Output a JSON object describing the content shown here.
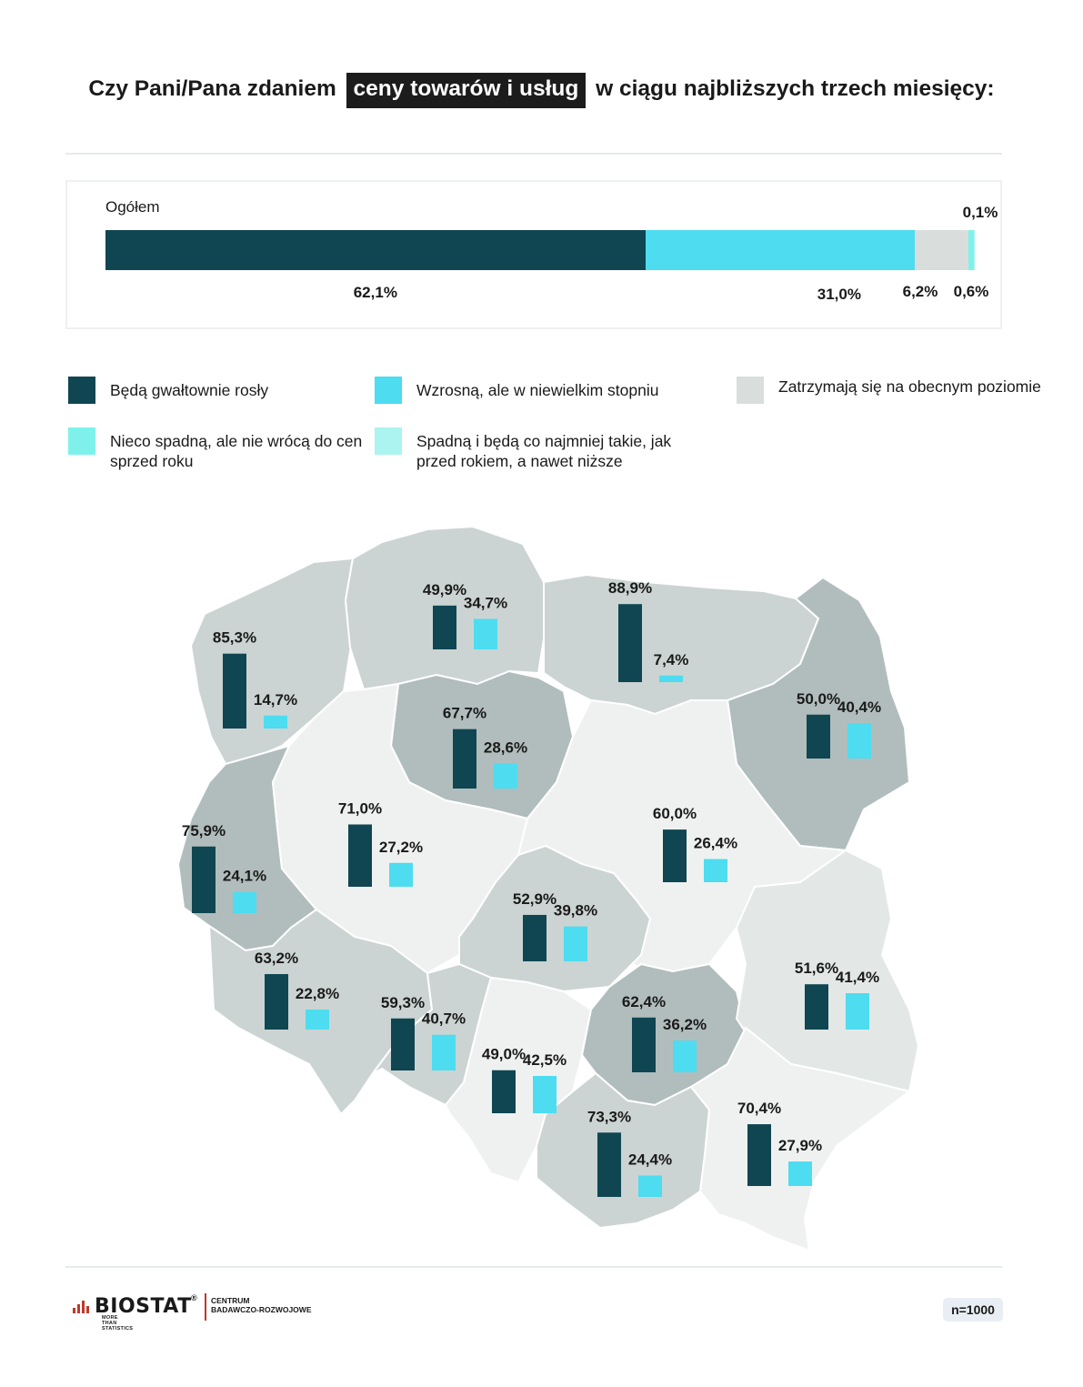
{
  "title": {
    "before": "Czy Pani/Pana zdaniem",
    "highlight": "ceny towarów i usług",
    "after": "w ciągu najbliższych trzech miesięcy:"
  },
  "colors": {
    "sharp_rise": "#0f4652",
    "slight_rise": "#4ddcf0",
    "stay": "#d9dedd",
    "slight_fall": "#7ef2ea",
    "fall": "#acf4ef",
    "region_dark": "#b1bdbc",
    "region_mid": "#cbd4d2",
    "region_light": "#e3e7e6",
    "region_lightest": "#eff1f0"
  },
  "chart_data": [
    {
      "type": "bar",
      "label": "Ogółem",
      "series": [
        {
          "name": "Będą gwałtownie rosły",
          "value": 62.1,
          "label": "62,1%"
        },
        {
          "name": "Wzrosną, ale w niewielkim stopniu",
          "value": 31.0,
          "label": "31,0%"
        },
        {
          "name": "Zatrzymają się na obecnym poziomie",
          "value": 6.2,
          "label": "6,2%"
        },
        {
          "name": "Nieco spadną, ale nie wrócą do cen sprzed roku",
          "value": 0.6,
          "label": "0,6%"
        },
        {
          "name": "Spadną i będą co najmniej takie, jak przed rokiem, a nawet niższe",
          "value": 0.1,
          "label": "0,1%"
        }
      ]
    },
    {
      "type": "bar",
      "series": [
        {
          "name": "Będą gwałtownie rosły",
          "values": [
            85.3,
            49.9,
            88.9,
            67.7,
            50.0,
            75.9,
            71.0,
            60.0,
            52.9,
            63.2,
            59.3,
            62.4,
            51.6,
            49.0,
            73.3,
            70.4
          ],
          "labels": [
            "85,3%",
            "49,9%",
            "88,9%",
            "67,7%",
            "50,0%",
            "75,9%",
            "71,0%",
            "60,0%",
            "52,9%",
            "63,2%",
            "59,3%",
            "62,4%",
            "51,6%",
            "49,0%",
            "73,3%",
            "70,4%"
          ]
        },
        {
          "name": "Wzrosną, ale w niewielkim stopniu",
          "values": [
            14.7,
            34.7,
            7.4,
            28.6,
            40.4,
            24.1,
            27.2,
            26.4,
            39.8,
            22.8,
            40.7,
            36.2,
            41.4,
            42.5,
            24.4,
            27.9
          ],
          "labels": [
            "14,7%",
            "34,7%",
            "7,4%",
            "28,6%",
            "40,4%",
            "24,1%",
            "27,2%",
            "26,4%",
            "39,8%",
            "22,8%",
            "40,7%",
            "36,2%",
            "41,4%",
            "42,5%",
            "24,4%",
            "27,9%"
          ]
        }
      ]
    }
  ],
  "legend": [
    {
      "label": "Będą gwałtownie rosły",
      "color": "#0f4652"
    },
    {
      "label": "Wzrosną, ale w niewielkim stopniu",
      "color": "#4ddcf0"
    },
    {
      "label": "Zatrzymają się na obecnym poziomie",
      "color": "#d9dedd"
    },
    {
      "label": "Nieco spadną, ale nie wrócą do cen sprzed roku",
      "color": "#7ef2ea"
    },
    {
      "label": "Spadną i będą co najmniej takie, jak przed rokiem, a nawet niższe",
      "color": "#acf4ef"
    }
  ],
  "footer": {
    "brand": "BIOSTAT",
    "brand_mark": "®",
    "tagline": "MORE THAN STATISTICS",
    "centrum_line1": "CENTRUM",
    "centrum_line2": "BADAWCZO-ROZWOJOWE",
    "sample": "n=1000"
  }
}
